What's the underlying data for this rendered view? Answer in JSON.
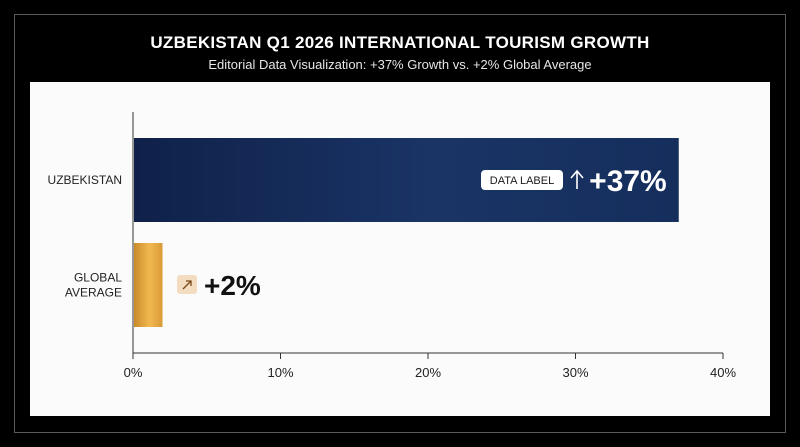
{
  "chart_data": {
    "type": "bar",
    "orientation": "horizontal",
    "title": "UZBEKISTAN Q1 2026 INTERNATIONAL TOURISM GROWTH",
    "subtitle": "Editorial Data Visualization: +37% Growth vs. +2% Global Average",
    "categories": [
      [
        "UZBEKISTAN"
      ],
      [
        "GLOBAL",
        "AVERAGE"
      ]
    ],
    "values": [
      37,
      2
    ],
    "value_labels": [
      "+37%",
      "+2%"
    ],
    "badge_label": "DATA LABEL",
    "colors": [
      "#152e5c",
      "#e2a43e"
    ],
    "xlim": [
      0,
      40
    ],
    "xticks": [
      0,
      10,
      20,
      30,
      40
    ],
    "xtick_labels": [
      "0%",
      "10%",
      "20%",
      "30%",
      "40%"
    ],
    "icons": [
      "arrow-up-icon",
      "arrow-up-right-icon"
    ],
    "grid": false,
    "legend": "none"
  }
}
